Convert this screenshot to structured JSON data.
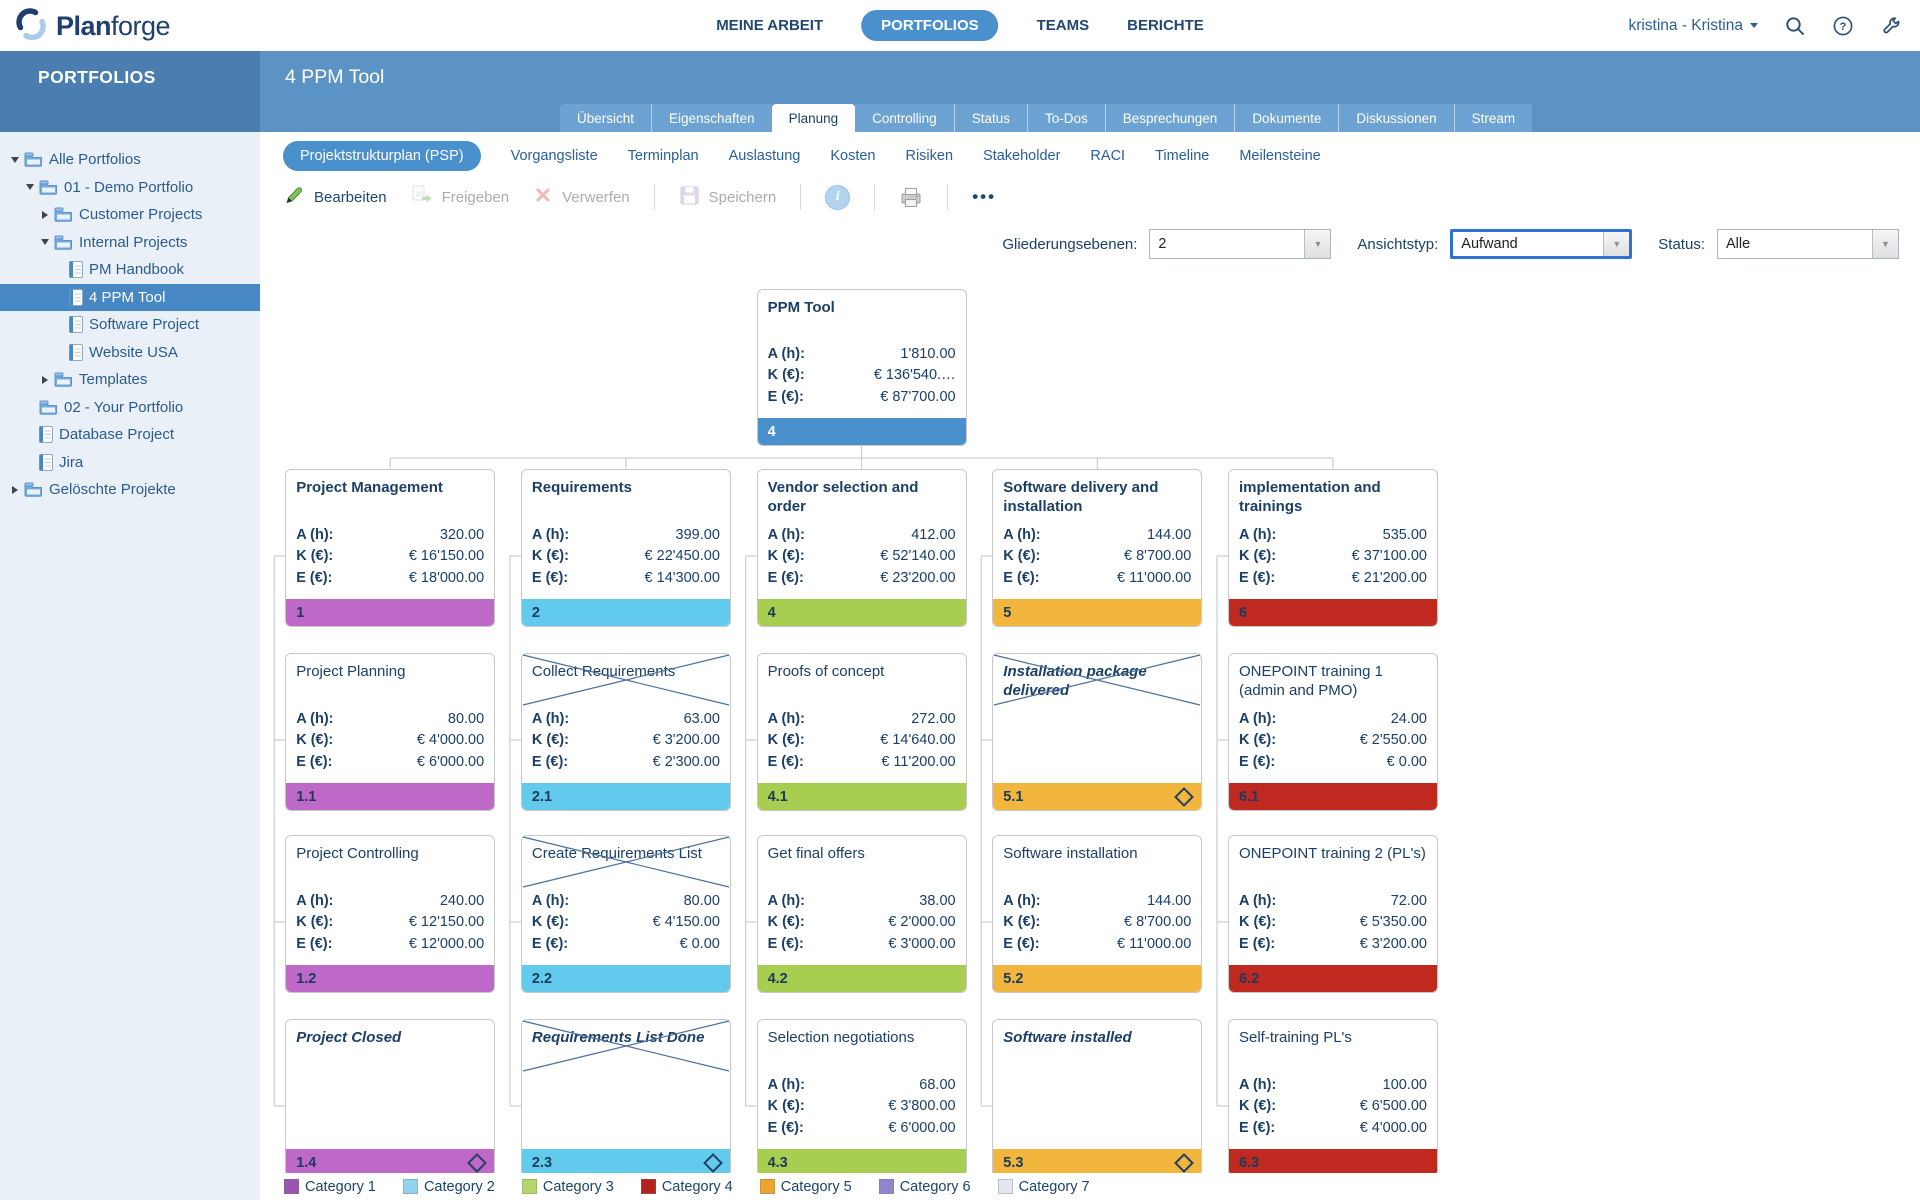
{
  "topnav": {
    "brand": "Planforge",
    "items": [
      {
        "label": "MEINE ARBEIT",
        "active": false
      },
      {
        "label": "PORTFOLIOS",
        "active": true
      },
      {
        "label": "TEAMS",
        "active": false
      },
      {
        "label": "BERICHTE",
        "active": false
      }
    ],
    "user": "kristina - Kristina",
    "icons": [
      "search-icon",
      "help-icon",
      "wrench-icon"
    ]
  },
  "header": {
    "sidebar_title": "PORTFOLIOS",
    "page_title": "4 PPM Tool"
  },
  "tabs": [
    {
      "label": "Übersicht"
    },
    {
      "label": "Eigenschaften"
    },
    {
      "label": "Planung",
      "active": true
    },
    {
      "label": "Controlling"
    },
    {
      "label": "Status"
    },
    {
      "label": "To-Dos"
    },
    {
      "label": "Besprechungen"
    },
    {
      "label": "Dokumente"
    },
    {
      "label": "Diskussionen"
    },
    {
      "label": "Stream"
    }
  ],
  "subtabs": [
    {
      "label": "Projektstrukturplan (PSP)",
      "active": true
    },
    {
      "label": "Vorgangsliste"
    },
    {
      "label": "Terminplan"
    },
    {
      "label": "Auslastung"
    },
    {
      "label": "Kosten"
    },
    {
      "label": "Risiken"
    },
    {
      "label": "Stakeholder"
    },
    {
      "label": "RACI"
    },
    {
      "label": "Timeline"
    },
    {
      "label": "Meilensteine"
    }
  ],
  "toolbar": [
    {
      "type": "button",
      "label": "Bearbeiten",
      "icon": "pencil-icon",
      "enabled": true
    },
    {
      "type": "button",
      "label": "Freigeben",
      "icon": "release-icon",
      "enabled": false
    },
    {
      "type": "button",
      "label": "Verwerfen",
      "icon": "discard-icon",
      "enabled": false
    },
    {
      "type": "separator"
    },
    {
      "type": "button",
      "label": "Speichern",
      "icon": "save-icon",
      "enabled": false
    },
    {
      "type": "separator"
    },
    {
      "type": "icon",
      "icon": "info-icon",
      "label": "i"
    },
    {
      "type": "separator"
    },
    {
      "type": "icon",
      "icon": "print-icon"
    },
    {
      "type": "separator"
    },
    {
      "type": "icon",
      "icon": "more-icon",
      "label": "•••"
    }
  ],
  "filters": [
    {
      "label": "Gliederungsebenen:",
      "value": "2",
      "focused": false
    },
    {
      "label": "Ansichtstyp:",
      "value": "Aufwand",
      "focused": true
    },
    {
      "label": "Status:",
      "value": "Alle",
      "focused": false
    }
  ],
  "sidebar_tree": [
    {
      "label": "Alle Portfolios",
      "level": 0,
      "arrow": "down",
      "icon": "folder",
      "selected": false
    },
    {
      "label": "01 - Demo Portfolio",
      "level": 1,
      "arrow": "down",
      "icon": "folder",
      "selected": false
    },
    {
      "label": "Customer Projects",
      "level": 2,
      "arrow": "right",
      "icon": "folder",
      "selected": false
    },
    {
      "label": "Internal Projects",
      "level": 2,
      "arrow": "down",
      "icon": "folder",
      "selected": false
    },
    {
      "label": "PM Handbook",
      "level": 3,
      "arrow": "none",
      "icon": "project",
      "selected": false
    },
    {
      "label": "4 PPM Tool",
      "level": 3,
      "arrow": "none",
      "icon": "project",
      "selected": true
    },
    {
      "label": "Software Project",
      "level": 3,
      "arrow": "none",
      "icon": "project",
      "selected": false
    },
    {
      "label": "Website USA",
      "level": 3,
      "arrow": "none",
      "icon": "project",
      "selected": false
    },
    {
      "label": "Templates",
      "level": 2,
      "arrow": "right",
      "icon": "folder",
      "selected": false
    },
    {
      "label": "02 - Your Portfolio",
      "level": 1,
      "arrow": "none",
      "icon": "folder",
      "selected": false
    },
    {
      "label": "Database Project",
      "level": 1,
      "arrow": "none",
      "icon": "project",
      "selected": false
    },
    {
      "label": "Jira",
      "level": 1,
      "arrow": "none",
      "icon": "project",
      "selected": false
    },
    {
      "label": "Gelöschte Projekte",
      "level": 0,
      "arrow": "right",
      "icon": "folder",
      "selected": false
    }
  ],
  "chart": {
    "value_labels": [
      "A (h):",
      "K (€):",
      "E (€):"
    ],
    "root": {
      "title": "PPM Tool",
      "a": "1'810.00",
      "k": "€ 136'540.…",
      "e": "€ 87'700.00",
      "code": "4",
      "color": "#4A90CC"
    },
    "columns": [
      {
        "color": "#BE69C8",
        "header": {
          "title": "Project Management",
          "a": "320.00",
          "k": "€ 16'150.00",
          "e": "€ 18'000.00",
          "code": "1"
        },
        "children": [
          {
            "title": "Project Planning",
            "a": "80.00",
            "k": "€ 4'000.00",
            "e": "€ 6'000.00",
            "code": "1.1"
          },
          {
            "title": "Project Controlling",
            "a": "240.00",
            "k": "€ 12'150.00",
            "e": "€ 12'000.00",
            "code": "1.2"
          },
          {
            "title": "Project Closed",
            "milestone": true,
            "diamond": true,
            "code": "1.4"
          }
        ]
      },
      {
        "color": "#62CBED",
        "header": {
          "title": "Requirements",
          "a": "399.00",
          "k": "€ 22'450.00",
          "e": "€ 14'300.00",
          "code": "2"
        },
        "children": [
          {
            "title": "Collect Requirements",
            "crossed": true,
            "a": "63.00",
            "k": "€ 3'200.00",
            "e": "€ 2'300.00",
            "code": "2.1"
          },
          {
            "title": "Create Requirements List",
            "crossed": true,
            "a": "80.00",
            "k": "€ 4'150.00",
            "e": "€ 0.00",
            "code": "2.2"
          },
          {
            "title": "Requirements List Done",
            "milestone": true,
            "crossed": true,
            "diamond": true,
            "code": "2.3"
          }
        ]
      },
      {
        "color": "#A7CE50",
        "header": {
          "title": "Vendor selection and order",
          "a": "412.00",
          "k": "€ 52'140.00",
          "e": "€ 23'200.00",
          "code": "4"
        },
        "children": [
          {
            "title": "Proofs of concept",
            "a": "272.00",
            "k": "€ 14'640.00",
            "e": "€ 11'200.00",
            "code": "4.1"
          },
          {
            "title": "Get final offers",
            "a": "38.00",
            "k": "€ 2'000.00",
            "e": "€ 3'000.00",
            "code": "4.2"
          },
          {
            "title": "Selection negotiations",
            "a": "68.00",
            "k": "€ 3'800.00",
            "e": "€ 6'000.00",
            "code": "4.3"
          }
        ]
      },
      {
        "color": "#F2B63E",
        "header": {
          "title": "Software delivery and installation",
          "a": "144.00",
          "k": "€ 8'700.00",
          "e": "€ 11'000.00",
          "code": "5"
        },
        "children": [
          {
            "title": "Installation package delivered",
            "milestone": true,
            "crossed": true,
            "diamond": true,
            "code": "5.1"
          },
          {
            "title": "Software installation",
            "a": "144.00",
            "k": "€ 8'700.00",
            "e": "€ 11'000.00",
            "code": "5.2"
          },
          {
            "title": "Software installed",
            "milestone": true,
            "diamond": true,
            "code": "5.3"
          }
        ]
      },
      {
        "color": "#BF2920",
        "header": {
          "title": "implementation and trainings",
          "a": "535.00",
          "k": "€ 37'100.00",
          "e": "€ 21'200.00",
          "code": "6"
        },
        "children": [
          {
            "title": "ONEPOINT training 1 (admin and PMO)",
            "a": "24.00",
            "k": "€ 2'550.00",
            "e": "€ 0.00",
            "code": "6.1"
          },
          {
            "title": "ONEPOINT training 2 (PL's)",
            "a": "72.00",
            "k": "€ 5'350.00",
            "e": "€ 3'200.00",
            "code": "6.2"
          },
          {
            "title": "Self-training PL's",
            "a": "100.00",
            "k": "€ 6'500.00",
            "e": "€ 4'000.00",
            "code": "6.3"
          }
        ]
      }
    ]
  },
  "legend": [
    {
      "label": "Category 1",
      "color": "#9A55AE"
    },
    {
      "label": "Category 2",
      "color": "#8FD3EE"
    },
    {
      "label": "Category 3",
      "color": "#B4D76A"
    },
    {
      "label": "Category 4",
      "color": "#B2231D"
    },
    {
      "label": "Category 5",
      "color": "#EDA52F"
    },
    {
      "label": "Category 6",
      "color": "#8F86CE"
    },
    {
      "label": "Category 7",
      "color": "#E4E7F0"
    }
  ]
}
